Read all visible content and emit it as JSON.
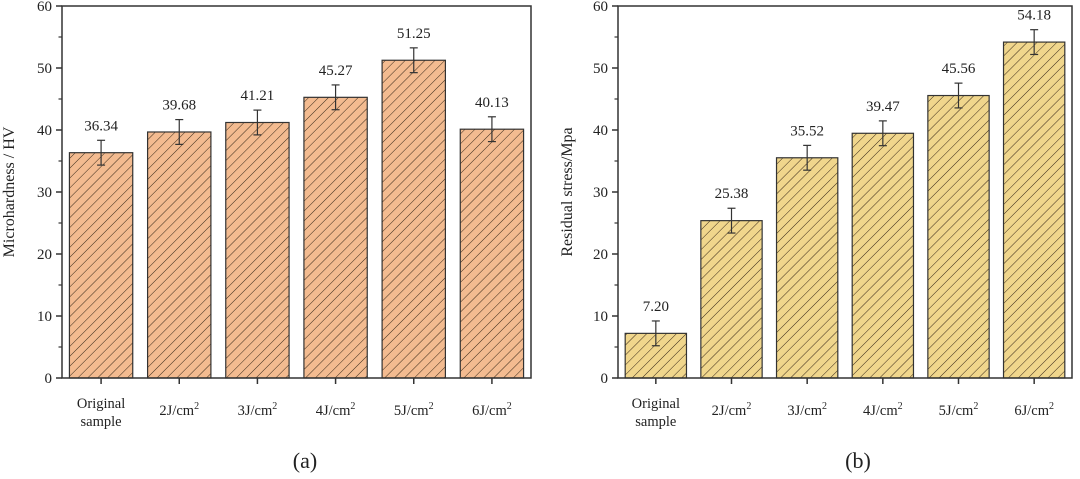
{
  "chart_data": [
    {
      "type": "bar",
      "panel_label": "(a)",
      "ylabel": "Microhardness / HV",
      "ylim": [
        0,
        60
      ],
      "yticks": [
        0,
        10,
        20,
        30,
        40,
        50,
        60
      ],
      "categories": [
        {
          "base": "Original",
          "line2": "sample"
        },
        {
          "base": "2J/cm",
          "sup": "2"
        },
        {
          "base": "3J/cm",
          "sup": "2"
        },
        {
          "base": "4J/cm",
          "sup": "2"
        },
        {
          "base": "5J/cm",
          "sup": "2"
        },
        {
          "base": "6J/cm",
          "sup": "2"
        }
      ],
      "values": [
        36.34,
        39.68,
        41.21,
        45.27,
        51.25,
        40.13
      ],
      "data_labels": [
        "36.34",
        "39.68",
        "41.21",
        "45.27",
        "51.25",
        "40.13"
      ],
      "errors": [
        2,
        2,
        2,
        2,
        2,
        2
      ],
      "fill_color": "#f3bb90",
      "hatch": "diagonal",
      "grid": false
    },
    {
      "type": "bar",
      "panel_label": "(b)",
      "ylabel": "Residual stress/Mpa",
      "ylim": [
        0,
        60
      ],
      "yticks": [
        0,
        10,
        20,
        30,
        40,
        50,
        60
      ],
      "categories": [
        {
          "base": "Original",
          "line2": "sample"
        },
        {
          "base": "2J/cm",
          "sup": "2"
        },
        {
          "base": "3J/cm",
          "sup": "2"
        },
        {
          "base": "4J/cm",
          "sup": "2"
        },
        {
          "base": "5J/cm",
          "sup": "2"
        },
        {
          "base": "6J/cm",
          "sup": "2"
        }
      ],
      "values": [
        7.2,
        25.38,
        35.52,
        39.47,
        45.56,
        54.18
      ],
      "data_labels": [
        "7.20",
        "25.38",
        "35.52",
        "39.47",
        "45.56",
        "54.18"
      ],
      "errors": [
        2,
        2,
        2,
        2,
        2,
        2
      ],
      "fill_color": "#f0d68c",
      "hatch": "diagonal",
      "grid": false
    }
  ]
}
